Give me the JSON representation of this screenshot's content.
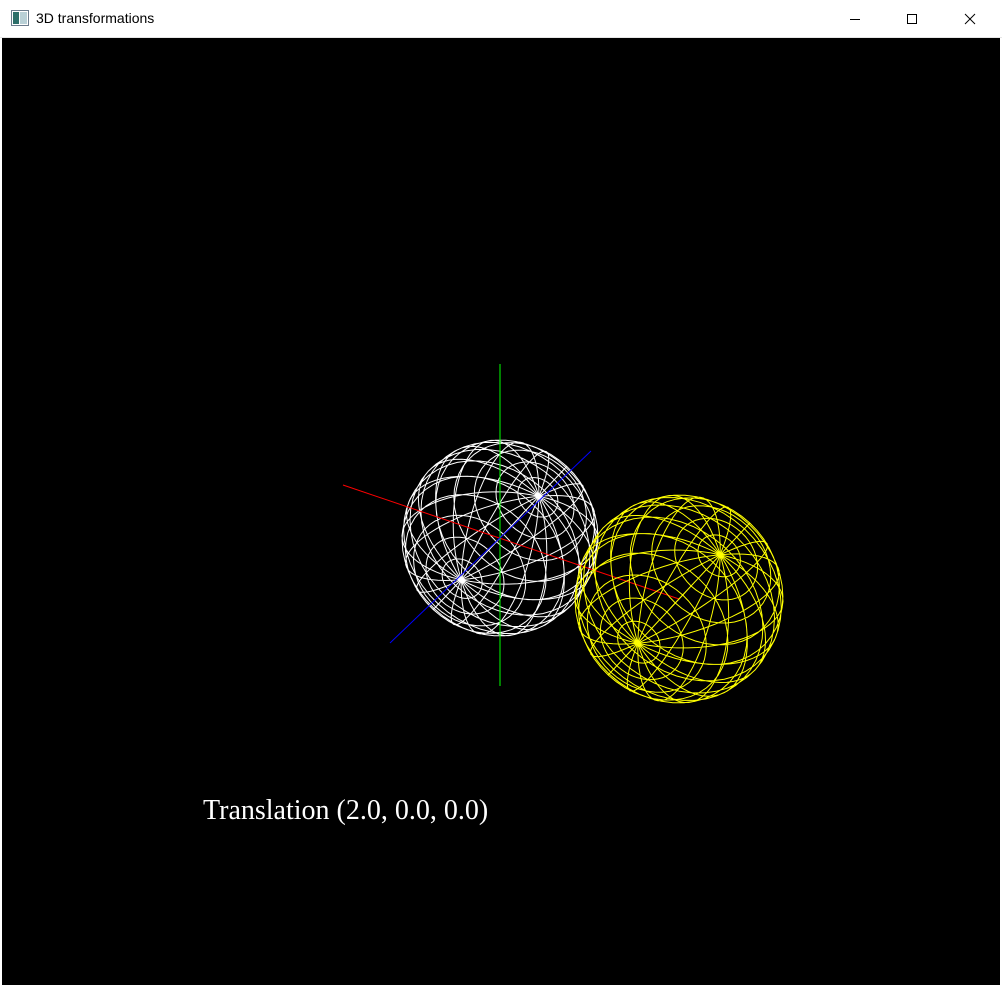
{
  "window": {
    "title": "3D transformations",
    "controls": {
      "minimize_icon": "minimize-icon",
      "maximize_icon": "maximize-icon",
      "close_icon": "close-icon"
    }
  },
  "scene": {
    "background": "#000000",
    "caption": "Translation (2.0, 0.0, 0.0)",
    "axes": {
      "x_color": "#ff0000",
      "y_color": "#00ff00",
      "z_color": "#0000ff"
    },
    "objects": [
      {
        "name": "original-sphere",
        "style": "wireframe",
        "color": "#ffffff"
      },
      {
        "name": "translated-sphere",
        "style": "wireframe",
        "color": "#ffff00",
        "translation": [
          2.0,
          0.0,
          0.0
        ]
      }
    ]
  }
}
